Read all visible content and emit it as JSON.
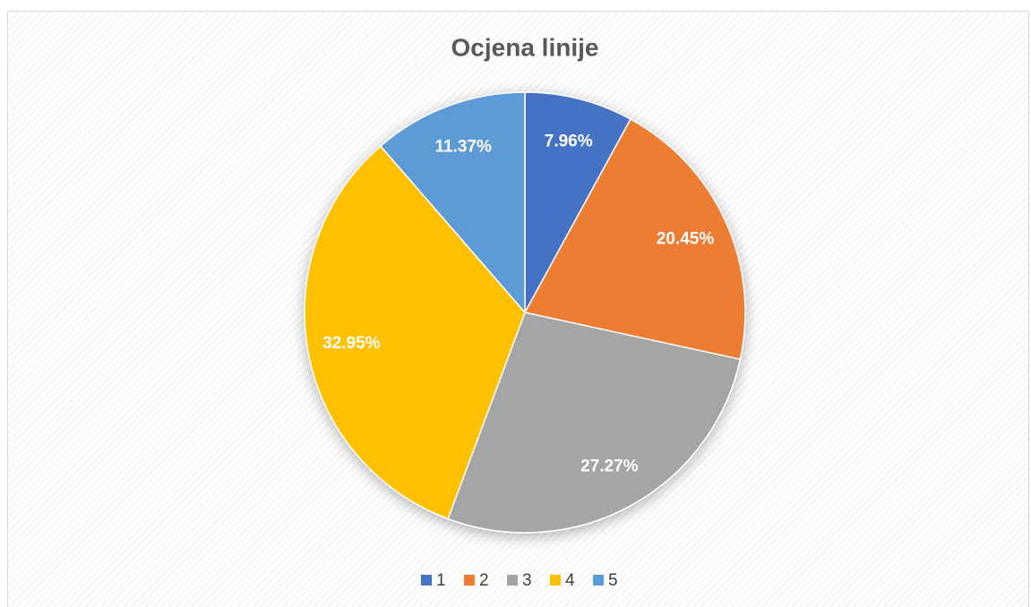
{
  "chart_data": {
    "type": "pie",
    "title": "Ocjena linije",
    "categories": [
      "1",
      "2",
      "3",
      "4",
      "5"
    ],
    "values": [
      7.96,
      20.45,
      27.27,
      32.95,
      11.37
    ],
    "value_labels": [
      "7.96%",
      "20.45%",
      "27.27%",
      "32.95%",
      "11.37%"
    ],
    "colors": [
      "#4472c4",
      "#ed7d31",
      "#a5a5a5",
      "#ffc000",
      "#5b9bd5"
    ],
    "legend": "bottom"
  }
}
